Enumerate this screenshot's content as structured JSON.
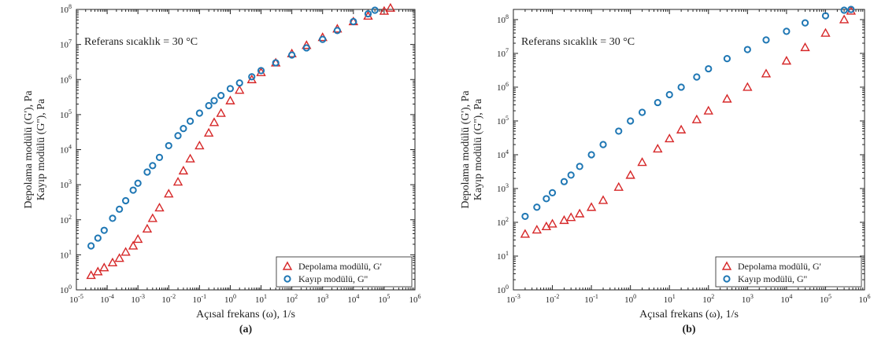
{
  "chart_data": [
    {
      "type": "scatter",
      "panel_label": "(a)",
      "annotation": "Referans sıcaklık = 30 °C",
      "xlabel": "Açısal frekans (ω), 1/s",
      "ylabel_line1": "Depolama modülü (G'), Pa",
      "ylabel_line2": "Kayıp modülü (G''), Pa",
      "xscale": "log",
      "yscale": "log",
      "xlim": [
        1e-05,
        1000000.0
      ],
      "ylim": [
        1,
        100000000.0
      ],
      "x_tick_exponents": [
        -5,
        -4,
        -3,
        -2,
        -1,
        0,
        1,
        2,
        3,
        4,
        5,
        6
      ],
      "y_tick_exponents": [
        0,
        1,
        2,
        3,
        4,
        5,
        6,
        7,
        8
      ],
      "legend_position": "bottom-right",
      "series": [
        {
          "name": "Depolama modülü, G'",
          "marker": "triangle",
          "color": "#d62728",
          "x": [
            3e-05,
            5e-05,
            8e-05,
            0.00015,
            0.00025,
            0.0004,
            0.0007,
            0.001,
            0.002,
            0.003,
            0.005,
            0.01,
            0.02,
            0.03,
            0.05,
            0.1,
            0.2,
            0.3,
            0.5,
            1,
            2,
            5,
            10,
            30,
            100,
            300,
            1000,
            3000,
            10000,
            30000,
            100000,
            160000
          ],
          "y": [
            2.6,
            3.3,
            4.3,
            6,
            8,
            12,
            18,
            28,
            55,
            110,
            220,
            550,
            1200,
            2500,
            5500,
            13000,
            30000,
            60000,
            110000,
            250000,
            500000,
            1000000,
            1600000,
            3000000,
            5500000,
            9500000,
            16000000,
            28000000,
            45000000,
            65000000,
            90000000,
            110000000
          ]
        },
        {
          "name": "Kayıp modülü, G''",
          "marker": "circle",
          "color": "#1f77b4",
          "x": [
            3e-05,
            5e-05,
            8e-05,
            0.00015,
            0.00025,
            0.0004,
            0.0007,
            0.001,
            0.002,
            0.003,
            0.005,
            0.01,
            0.02,
            0.03,
            0.05,
            0.1,
            0.2,
            0.3,
            0.5,
            1,
            2,
            5,
            10,
            30,
            100,
            300,
            1000,
            3000,
            10000,
            30000,
            50000
          ],
          "y": [
            18,
            30,
            50,
            110,
            200,
            350,
            700,
            1100,
            2300,
            3500,
            6000,
            13000,
            25000,
            40000,
            65000,
            110000,
            180000,
            250000,
            350000,
            550000,
            800000,
            1200000,
            1800000,
            3000000,
            5000000,
            8000000,
            14000000,
            25000000,
            45000000,
            75000000,
            95000000
          ]
        }
      ]
    },
    {
      "type": "scatter",
      "panel_label": "(b)",
      "annotation": "Referans sıcaklık = 30 °C",
      "xlabel": "Açısal frekans (ω), 1/s",
      "ylabel_line1": "Depolama modülü (G'), Pa",
      "ylabel_line2": "Kayıp modülü (G''), Pa",
      "xscale": "log",
      "yscale": "log",
      "xlim": [
        0.001,
        1000000.0
      ],
      "ylim": [
        1,
        200000000.0
      ],
      "x_tick_exponents": [
        -3,
        -2,
        -1,
        0,
        1,
        2,
        3,
        4,
        5,
        6
      ],
      "y_tick_exponents": [
        0,
        1,
        2,
        3,
        4,
        5,
        6,
        7,
        8
      ],
      "legend_position": "bottom-right",
      "series": [
        {
          "name": "Depolama modülü, G'",
          "marker": "triangle",
          "color": "#d62728",
          "x": [
            0.002,
            0.004,
            0.007,
            0.01,
            0.02,
            0.03,
            0.05,
            0.1,
            0.2,
            0.5,
            1,
            2,
            5,
            10,
            20,
            50,
            100,
            300,
            1000,
            3000,
            10000,
            30000,
            100000,
            300000,
            450000
          ],
          "y": [
            45,
            60,
            75,
            90,
            115,
            140,
            180,
            280,
            450,
            1100,
            2500,
            6000,
            15000,
            30000,
            55000,
            110000,
            200000,
            450000,
            1000000,
            2500000,
            6000000,
            15000000,
            40000000,
            100000000,
            180000000
          ]
        },
        {
          "name": "Kayıp modülü, G''",
          "marker": "circle",
          "color": "#1f77b4",
          "x": [
            0.002,
            0.004,
            0.007,
            0.01,
            0.02,
            0.03,
            0.05,
            0.1,
            0.2,
            0.5,
            1,
            2,
            5,
            10,
            20,
            50,
            100,
            300,
            1000,
            3000,
            10000,
            30000,
            100000,
            300000,
            450000
          ],
          "y": [
            150,
            280,
            500,
            750,
            1600,
            2500,
            4500,
            10000,
            20000,
            50000,
            100000,
            180000,
            350000,
            600000,
            1000000,
            2000000,
            3500000,
            7000000,
            13000000,
            25000000,
            45000000,
            80000000,
            130000000,
            190000000,
            200000000
          ]
        }
      ]
    }
  ]
}
